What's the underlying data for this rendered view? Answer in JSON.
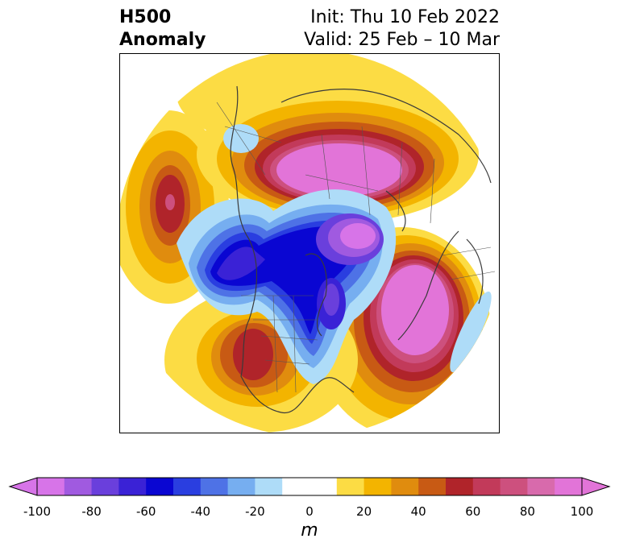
{
  "title": {
    "line1": "H500",
    "line2": "Anomaly"
  },
  "init": "Init: Thu 10 Feb 2022",
  "valid": "Valid: 25 Feb – 10 Mar",
  "colorbar": {
    "unit": "m",
    "ticks": [
      "-100",
      "-80",
      "-60",
      "-40",
      "-20",
      "0",
      "20",
      "40",
      "60",
      "80",
      "100"
    ],
    "colors": [
      "#d774e8",
      "#a05ae0",
      "#6a3fdc",
      "#3a22d6",
      "#0a06d2",
      "#2a3ee0",
      "#4e72e6",
      "#76aef0",
      "#aedcf8",
      "#ffffff",
      "#ffffff",
      "#fcdc44",
      "#f3b400",
      "#e08c0e",
      "#c85a14",
      "#b0242a",
      "#c23a5a",
      "#cd507e",
      "#d86aac",
      "#e274d8"
    ]
  },
  "map": {
    "description_colors": {
      "neg_light": "#aedcf8",
      "neg_mid": "#76aef0",
      "neg_strong": "#2a3ee0",
      "neg_max": "#a05ae0",
      "pos_light": "#fcdc44",
      "pos_mid": "#f3b400",
      "pos_strong": "#c85a14",
      "pos_deep": "#b0242a",
      "pos_max": "#e274d8"
    }
  }
}
